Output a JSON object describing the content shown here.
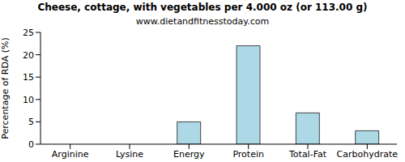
{
  "chart_data": {
    "type": "bar",
    "title": "Cheese, cottage, with vegetables per 4.000 oz (or 113.00 g)",
    "subtitle": "www.dietandfitnesstoday.com",
    "y_label": "Percentage of RDA (%)",
    "categories": [
      "Arginine",
      "Lysine",
      "Energy",
      "Protein",
      "Total-Fat",
      "Carbohydrate"
    ],
    "values": [
      0,
      0,
      5,
      22,
      7,
      3
    ],
    "color": "#add8e6",
    "ylim": [
      0,
      25
    ],
    "yticks": [
      0,
      5,
      10,
      15,
      20,
      25
    ],
    "grid": false
  }
}
